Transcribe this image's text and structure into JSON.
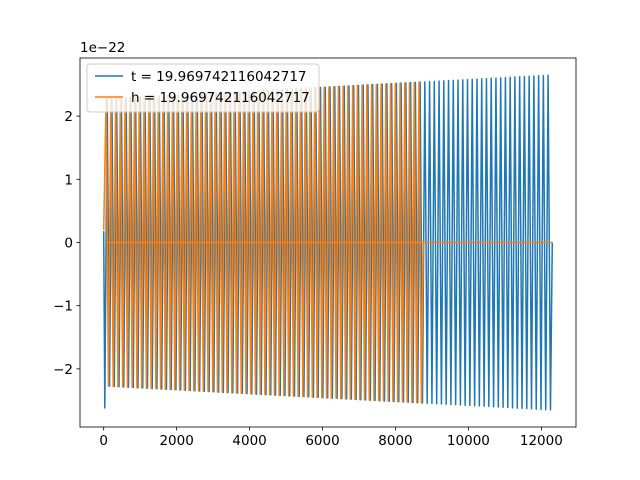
{
  "chart_data": {
    "type": "line",
    "title": "",
    "xlabel": "",
    "ylabel": "",
    "y_offset_label": "1e−22",
    "xlim": [
      -650,
      12950
    ],
    "ylim": [
      -2.92,
      2.92
    ],
    "xticks": [
      0,
      2000,
      4000,
      6000,
      8000,
      10000,
      12000
    ],
    "xtick_labels": [
      "0",
      "2000",
      "4000",
      "6000",
      "8000",
      "10000",
      "12000"
    ],
    "yticks": [
      -2,
      -1,
      0,
      1,
      2
    ],
    "ytick_labels": [
      "−2",
      "−1",
      "0",
      "1",
      "2"
    ],
    "grid": false,
    "legend_position": "upper-left",
    "series": [
      {
        "name": "t = 19.969742116042717",
        "color": "#1f77b4",
        "type": "oscillation",
        "x_start": 0,
        "x_end": 12300,
        "onset_x": 30,
        "initial_value": 0.18,
        "amplitude_start": 2.27,
        "amplitude_end": 2.65,
        "peak_amplitude_at_onset": 2.62,
        "half_period": 65
      },
      {
        "name": "h = 19.969742116042717",
        "color": "#ff7f0e",
        "type": "oscillation",
        "x_start": 0,
        "x_end": 12300,
        "osc_start": 0,
        "osc_end": 8760,
        "amplitude_start": 2.27,
        "amplitude_end": 2.65,
        "half_period": 65,
        "flat_value_after": 0
      }
    ]
  }
}
